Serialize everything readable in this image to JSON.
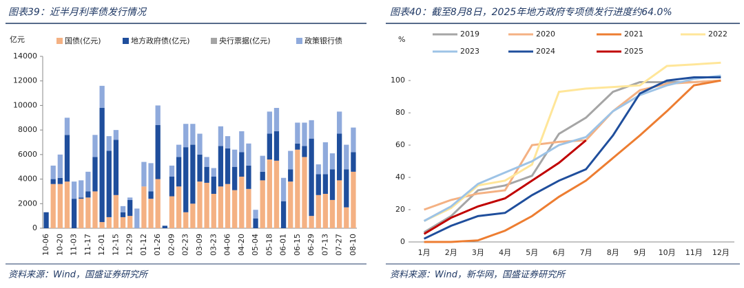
{
  "chart_data": [
    {
      "type": "bar",
      "title": "图表39：近半月利率债发行情况",
      "ylabel": "亿元",
      "source": "资料来源：Wind，国盛证券研究所",
      "categories": [
        "10-06",
        null,
        "10-20",
        null,
        "11-03",
        null,
        "11-17",
        null,
        "12-01",
        null,
        "12-15",
        null,
        "12-29",
        null,
        "01-12",
        null,
        "01-26",
        null,
        "02-09",
        null,
        "02-23",
        null,
        "03-09",
        null,
        "03-23",
        null,
        "04-06",
        null,
        "04-20",
        null,
        "05-04",
        null,
        "05-18",
        null,
        "06-01",
        null,
        "06-15",
        null,
        "06-29",
        null,
        "07-13",
        null,
        "07-27",
        null,
        "08-10"
      ],
      "stacked": true,
      "ylim": [
        0,
        14000
      ],
      "yticks": [
        0,
        2000,
        4000,
        6000,
        8000,
        10000,
        12000,
        14000
      ],
      "series": [
        {
          "name": "国债(亿元)",
          "color": "#f4b183",
          "values": [
            0,
            3600,
            3600,
            3800,
            0,
            2400,
            2500,
            3000,
            500,
            900,
            2700,
            900,
            1000,
            0,
            3400,
            2400,
            4000,
            0,
            2600,
            3400,
            1300,
            2000,
            3800,
            3700,
            2800,
            3400,
            3600,
            3100,
            4200,
            3200,
            0,
            3900,
            5600,
            5500,
            0,
            3800,
            6400,
            5800,
            1000,
            2700,
            2800,
            2300,
            3900,
            1700,
            4600
          ]
        },
        {
          "name": "地方政府债(亿元)",
          "color": "#1f4e9c",
          "values": [
            1300,
            400,
            500,
            3800,
            2400,
            100,
            500,
            2800,
            9300,
            5400,
            4500,
            400,
            1300,
            0,
            0,
            600,
            4400,
            200,
            1600,
            2400,
            5300,
            4800,
            2200,
            1300,
            1400,
            3300,
            2900,
            1900,
            2000,
            1900,
            800,
            700,
            2100,
            2400,
            2200,
            1000,
            500,
            900,
            6300,
            1700,
            1600,
            2500,
            3800,
            3100,
            1600
          ]
        },
        {
          "name": "央行票据(亿元)",
          "color": "#a5a5a5",
          "values": [
            0,
            0,
            0,
            0,
            0,
            0,
            0,
            0,
            0,
            0,
            0,
            0,
            0,
            0,
            0,
            0,
            0,
            0,
            0,
            0,
            0,
            0,
            0,
            0,
            0,
            0,
            0,
            0,
            0,
            0,
            0,
            0,
            0,
            0,
            0,
            0,
            0,
            0,
            0,
            0,
            0,
            0,
            0,
            0,
            0
          ]
        },
        {
          "name": "政策银行债",
          "color": "#8faadc",
          "values": [
            0,
            1100,
            1900,
            1400,
            1400,
            1400,
            1600,
            1800,
            1800,
            1200,
            800,
            500,
            200,
            1600,
            2000,
            2300,
            1600,
            0,
            900,
            1000,
            1900,
            1700,
            1700,
            800,
            700,
            1600,
            1000,
            1400,
            1700,
            1800,
            700,
            1300,
            1800,
            1900,
            1900,
            1500,
            1700,
            1900,
            1500,
            800,
            2600,
            1300,
            1800,
            2000,
            2000
          ]
        }
      ]
    },
    {
      "type": "line",
      "title": "图表40：截至8月8日，2025年地方政府专项债发行进度约64.0%",
      "ylabel": "%",
      "source": "资料来源：Wind，新华网，国盛证券研究所",
      "categories": [
        "1月",
        "2月",
        "3月",
        "4月",
        "5月",
        "6月",
        "7月",
        "8月",
        "9月",
        "10月",
        "11月",
        "12月"
      ],
      "ylim": [
        0,
        112
      ],
      "yticks": [
        0,
        20,
        40,
        60,
        80,
        100
      ],
      "series": [
        {
          "name": "2019",
          "color": "#a5a5a5",
          "values": [
            6,
            16,
            32,
            35,
            41,
            67,
            77,
            93,
            99,
            99,
            99,
            100
          ]
        },
        {
          "name": "2020",
          "color": "#f4b183",
          "values": [
            20,
            26,
            30,
            32,
            60,
            62,
            63,
            81,
            94,
            98,
            99,
            100
          ]
        },
        {
          "name": "2021",
          "color": "#ed7d31",
          "values": [
            0,
            0,
            1,
            7,
            16,
            28,
            38,
            52,
            66,
            81,
            97,
            100
          ]
        },
        {
          "name": "2022",
          "color": "#ffe699",
          "values": [
            13,
            21,
            35,
            38,
            48,
            93,
            95,
            96,
            97,
            109,
            110,
            111
          ]
        },
        {
          "name": "2023",
          "color": "#9dc3e6",
          "values": [
            13,
            22,
            36,
            43,
            50,
            60,
            65,
            81,
            91,
            97,
            101,
            103
          ]
        },
        {
          "name": "2024",
          "color": "#1f4e9c",
          "values": [
            2,
            10,
            16,
            18,
            29,
            38,
            45,
            66,
            92,
            100,
            102,
            102
          ]
        },
        {
          "name": "2025",
          "color": "#c00000",
          "values": [
            5,
            15,
            22,
            27,
            38,
            49,
            63,
            null,
            null,
            null,
            null,
            null
          ]
        }
      ]
    }
  ]
}
